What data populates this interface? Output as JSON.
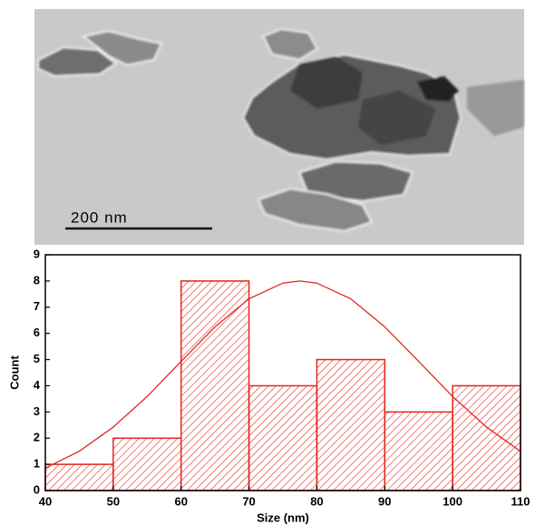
{
  "scale_bar_label": "200 nm",
  "chart_data": {
    "type": "histogram",
    "bins": [
      40,
      50,
      60,
      70,
      80,
      90,
      100,
      110
    ],
    "values": [
      1,
      2,
      8,
      4,
      5,
      3,
      4
    ],
    "color": "#e3261f",
    "x_label": "Size (nm)",
    "y_label": "Count",
    "xlim": [
      40,
      110
    ],
    "xticks": [
      40,
      50,
      60,
      70,
      80,
      90,
      100,
      110
    ],
    "ylim": [
      0,
      9
    ],
    "yticks": [
      0,
      1,
      2,
      3,
      4,
      5,
      6,
      7,
      8,
      9
    ],
    "fit": {
      "x": [
        40,
        45,
        50,
        55,
        60,
        65,
        70,
        75,
        77.5,
        80,
        85,
        90,
        95,
        100,
        105,
        110
      ],
      "values": [
        0.86,
        1.5,
        2.42,
        3.59,
        4.93,
        6.25,
        7.32,
        7.92,
        8,
        7.92,
        7.32,
        6.25,
        4.93,
        3.59,
        2.42,
        1.5
      ]
    }
  }
}
